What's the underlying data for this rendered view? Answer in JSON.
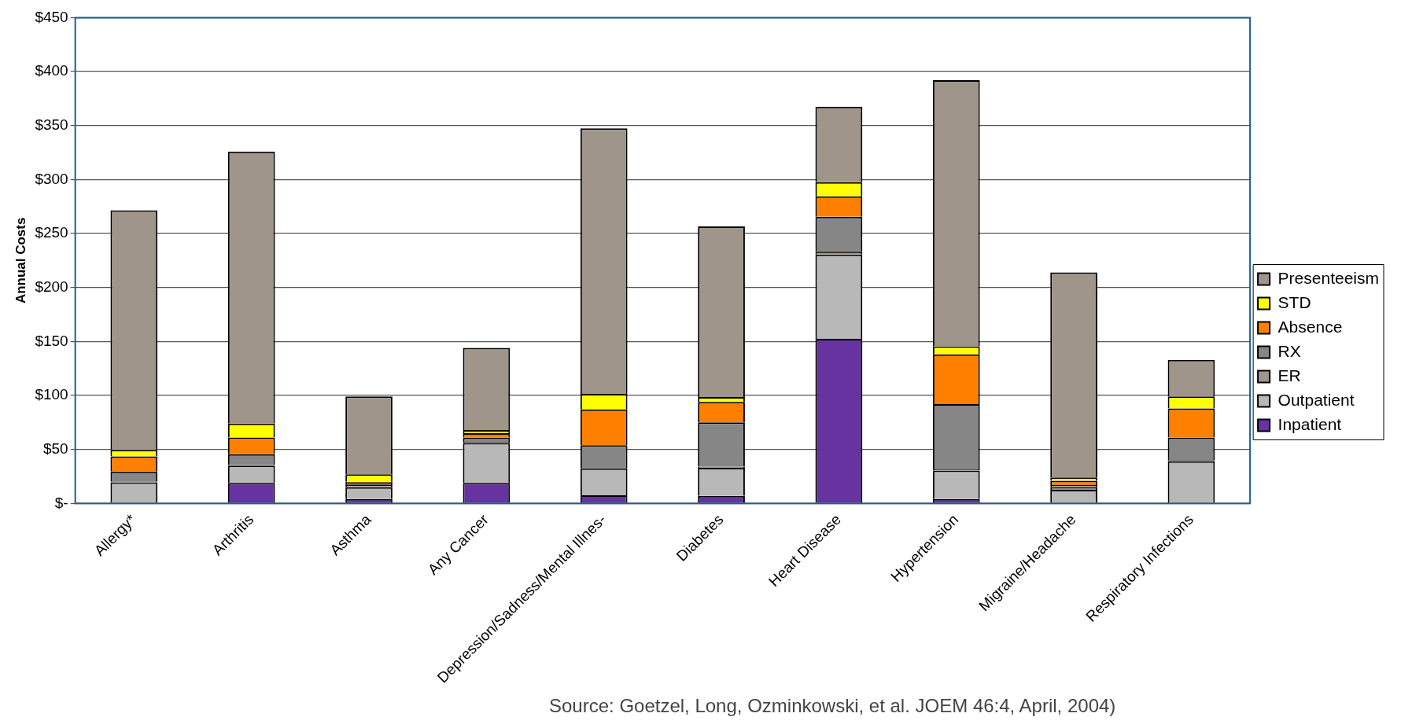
{
  "chart_data": {
    "type": "bar",
    "stacked": true,
    "ylabel": "Annual Costs",
    "categories": [
      "Allergy*",
      "Arthritis",
      "Asthma",
      "Any Cancer",
      "Depression/Sadness/Mental Illnes-",
      "Diabetes",
      "Heart Disease",
      "Hypertension",
      "Migraine/Headache",
      "Respiratory Infections"
    ],
    "series": [
      {
        "name": "Inpatient",
        "color": "#6633a0",
        "values": [
          0.5,
          19,
          4,
          19,
          7.5,
          7,
          152.5,
          4,
          0.5,
          null
        ]
      },
      {
        "name": "Outpatient",
        "color": "#b8b8b8",
        "values": [
          19,
          16,
          11,
          37,
          25,
          26,
          78,
          26.5,
          12,
          39
        ]
      },
      {
        "name": "ER",
        "color": "#a0958b",
        "values": [
          1,
          0.5,
          2,
          1,
          0.5,
          1,
          3,
          1,
          2.5,
          1
        ]
      },
      {
        "name": "RX",
        "color": "#868686",
        "values": [
          9,
          10,
          1.5,
          4,
          21,
          41,
          32,
          60.5,
          2,
          21
        ]
      },
      {
        "name": "Absence",
        "color": "#ff8000",
        "values": [
          14,
          15.5,
          1.5,
          4,
          33,
          19,
          19,
          46,
          4,
          27
        ]
      },
      {
        "name": "STD",
        "color": "#ffff00",
        "values": [
          6,
          13,
          7,
          3,
          14.5,
          4.5,
          13,
          7.5,
          3,
          11
        ]
      },
      {
        "name": "Presenteeism",
        "color": "#a0958b",
        "values": [
          222,
          252,
          72,
          76,
          246,
          158,
          70,
          246.5,
          190,
          34
        ]
      }
    ],
    "ylim": [
      0,
      450
    ],
    "yticks": [
      {
        "value": 0,
        "label": "$-"
      },
      {
        "value": 50,
        "label": "$50"
      },
      {
        "value": 100,
        "label": "$100"
      },
      {
        "value": 150,
        "label": "$150"
      },
      {
        "value": 200,
        "label": "$200"
      },
      {
        "value": 250,
        "label": "$250"
      },
      {
        "value": 300,
        "label": "$300"
      },
      {
        "value": 350,
        "label": "$350"
      },
      {
        "value": 400,
        "label": "$400"
      },
      {
        "value": 450,
        "label": "$450"
      }
    ],
    "grid": "y",
    "legend": "right",
    "annotations": [
      "Source: Goetzel, Long, Ozminkowski, et al. JOEM 46:4, April, 2004)"
    ]
  }
}
